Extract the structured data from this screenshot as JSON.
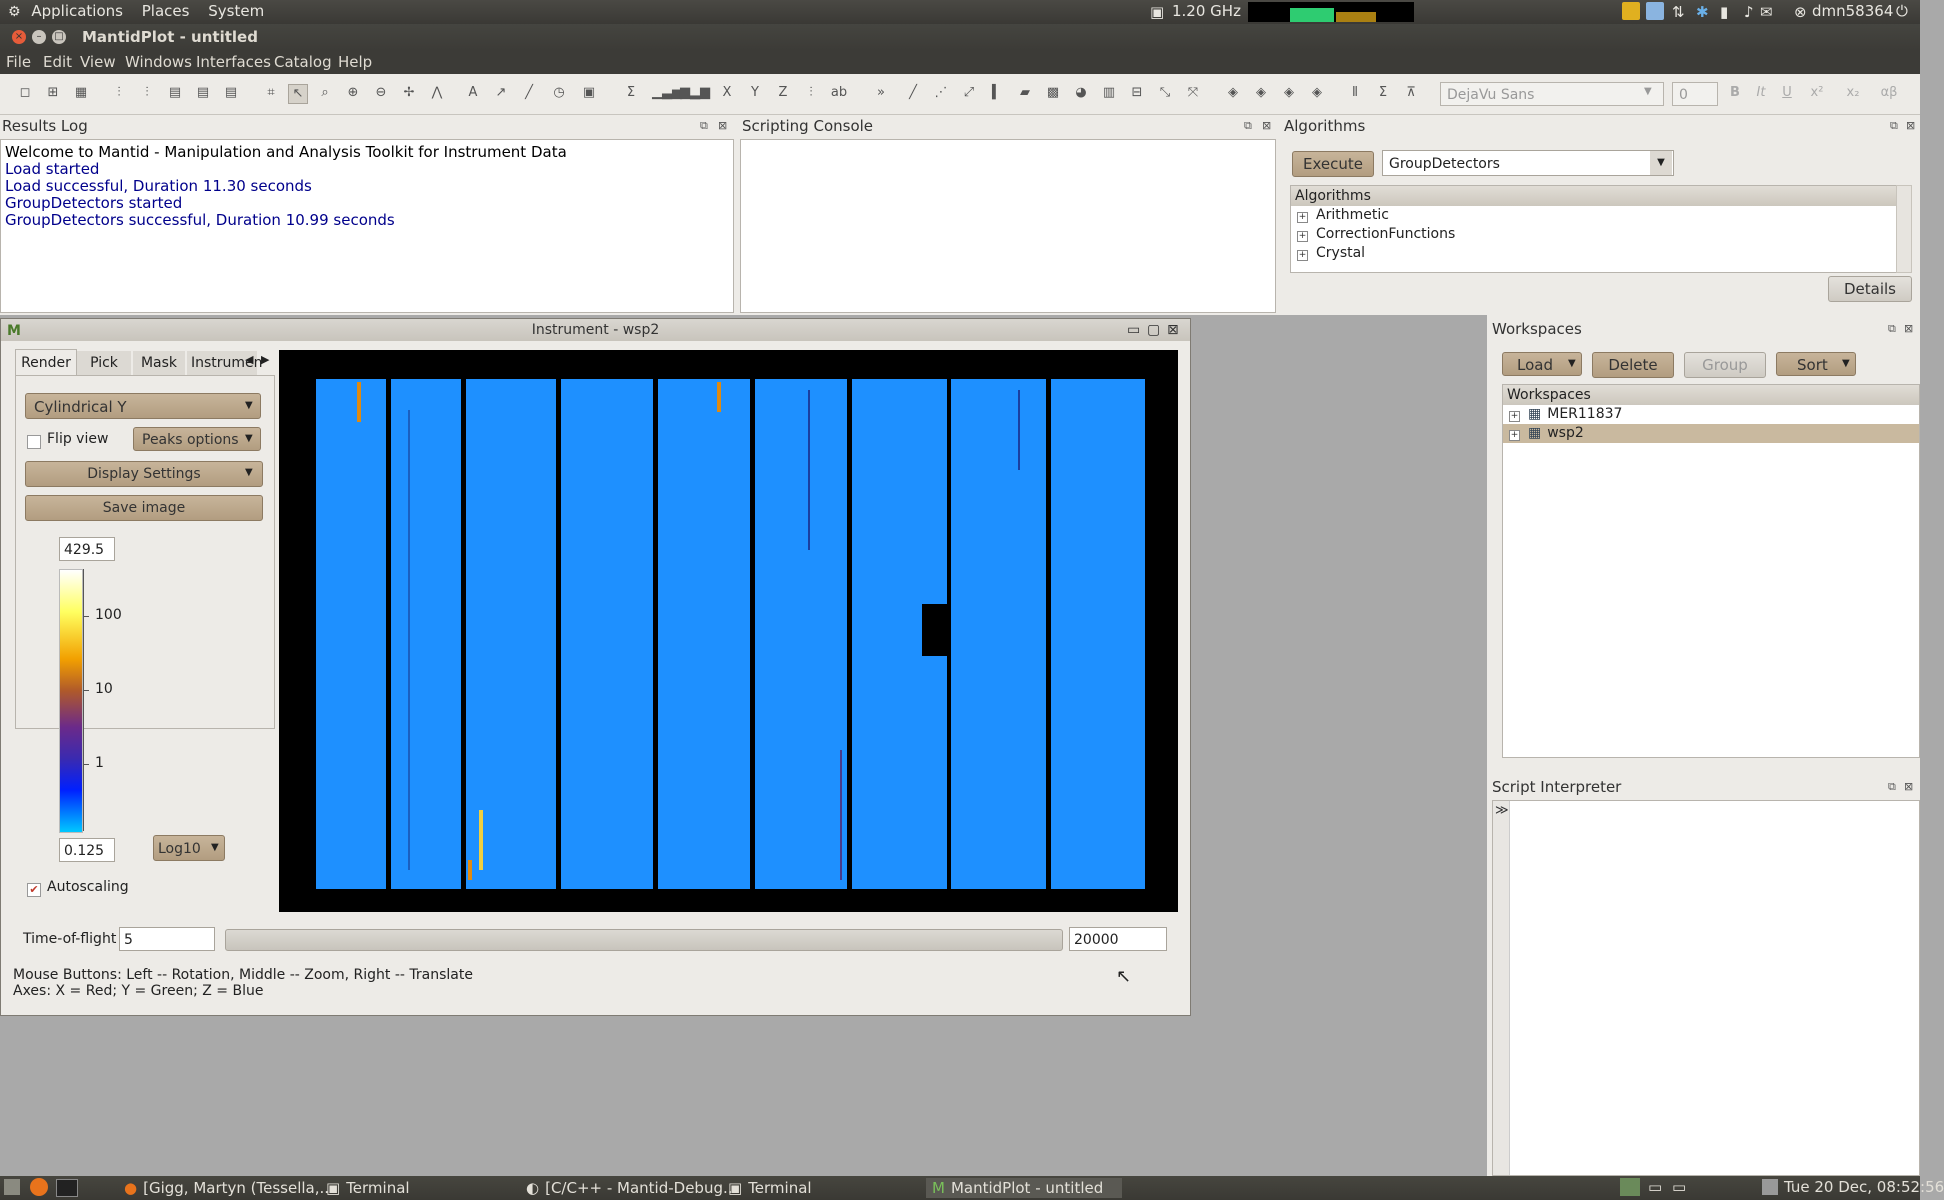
{
  "top_panel": {
    "menus": [
      "Applications",
      "Places",
      "System"
    ],
    "cpu_freq": "1.20 GHz",
    "user": "dmn58364"
  },
  "window": {
    "title": "MantidPlot - untitled"
  },
  "menubar": [
    "File",
    "Edit",
    "View",
    "Windows",
    "Interfaces",
    "Catalog",
    "Help"
  ],
  "toolbar": {
    "font_family_value": "DejaVu Sans",
    "font_size_value": "0",
    "format_bold": "B",
    "format_italic": "It",
    "format_underline": "U",
    "format_sup": "x²",
    "format_sub": "x₂",
    "format_greek": "αβ"
  },
  "results_log": {
    "title": "Results Log",
    "lines": [
      "Welcome to Mantid - Manipulation and Analysis Toolkit for Instrument Data",
      "Load started",
      "Load successful, Duration 11.30 seconds",
      "GroupDetectors started",
      "GroupDetectors successful, Duration 10.99 seconds"
    ]
  },
  "scripting_console": {
    "title": "Scripting Console"
  },
  "algorithms": {
    "title": "Algorithms",
    "execute_label": "Execute",
    "selected": "GroupDetectors",
    "tree_header": "Algorithms",
    "categories": [
      "Arithmetic",
      "CorrectionFunctions",
      "Crystal"
    ],
    "details_label": "Details"
  },
  "instrument": {
    "title": "Instrument - wsp2",
    "tabs": [
      "Render",
      "Pick",
      "Mask",
      "Instrumen"
    ],
    "render_mode": "Cylindrical Y",
    "flip_view_label": "Flip view",
    "flip_view_checked": false,
    "peaks_options_label": "Peaks options",
    "display_settings_label": "Display Settings",
    "save_image_label": "Save image",
    "colorbar_max": "429.5",
    "colorbar_min": "0.125",
    "colorbar_ticks": [
      "100",
      "10",
      "1"
    ],
    "scale_type": "Log10",
    "autoscaling_label": "Autoscaling",
    "autoscaling_checked": true,
    "tof_label": "Time-of-flight",
    "tof_min": "5",
    "tof_max": "20000",
    "help_line1": "Mouse Buttons: Left -- Rotation, Middle -- Zoom, Right -- Translate",
    "help_line2": "Axes: X = Red; Y = Green; Z = Blue"
  },
  "workspaces": {
    "title": "Workspaces",
    "load_label": "Load",
    "delete_label": "Delete",
    "group_label": "Group",
    "sort_label": "Sort",
    "tree_header": "Workspaces",
    "items": [
      "MER11837",
      "wsp2"
    ]
  },
  "script_interpreter": {
    "title": "Script Interpreter",
    "prompt": "≫"
  },
  "taskbar": {
    "tasks": [
      "[Gigg, Martyn (Tessella,...",
      "Terminal",
      "[C/C++ - Mantid-Debug...",
      "Terminal",
      "MantidPlot - untitled"
    ],
    "clock": "Tue 20 Dec, 08:52:56"
  },
  "colors": {
    "detector_fill": "#1e90ff",
    "panel_bg": "#edebe7",
    "link_blue": "#00008b"
  }
}
